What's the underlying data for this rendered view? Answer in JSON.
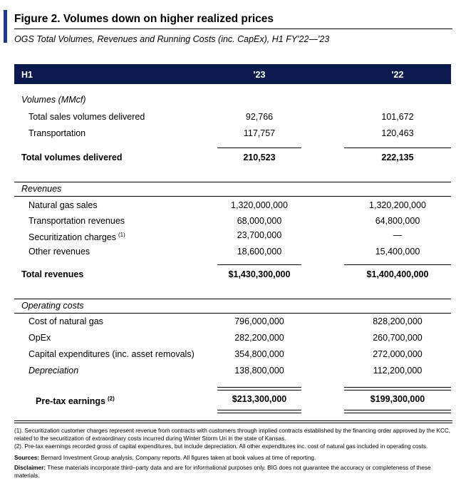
{
  "title": "Figure 2. Volumes down on higher realized prices",
  "subtitle": "OGS Total Volumes, Revenues and Running Costs (inc. CapEx),  H1 FY'22—'23",
  "header": [
    "H1",
    "'23",
    "'22"
  ],
  "sections": [
    {
      "heading": "Volumes (MMcf)",
      "rows": [
        {
          "label": "Total sales volumes delivered",
          "v23": "92,766",
          "v22": "101,672"
        },
        {
          "label": "Transportation",
          "v23": "117,757",
          "v22": "120,463"
        }
      ],
      "total": {
        "label": "Total volumes delivered",
        "v23": "210,523",
        "v22": "222,135"
      }
    },
    {
      "heading": "Revenues",
      "rows": [
        {
          "label": "Natural gas sales",
          "v23": "1,320,000,000",
          "v22": "1,320,200,000"
        },
        {
          "label": "Transportation revenues",
          "v23": "68,000,000",
          "v22": "64,800,000"
        },
        {
          "label": "Securitization charges",
          "note": "(1)",
          "v23": "23,700,000",
          "v22": "—"
        },
        {
          "label": "Other revenues",
          "v23": "18,600,000",
          "v22": "15,400,000"
        }
      ],
      "total": {
        "label": "Total revenues",
        "v23": "$1,430,300,000",
        "v22": "$1,400,400,000"
      }
    },
    {
      "heading": "Operating costs",
      "rows": [
        {
          "label": "Cost of natural gas",
          "v23": "796,000,000",
          "v22": "828,200,000"
        },
        {
          "label": "OpEx",
          "v23": "282,200,000",
          "v22": "260,700,000"
        },
        {
          "label": "Capital expenditures (inc. asset removals)",
          "v23": "354,800,000",
          "v22": "272,000,000"
        },
        {
          "label": "Depreciation",
          "v23": "138,800,000",
          "v22": "112,200,000"
        }
      ],
      "total": {
        "label": "Pre-tax earnings",
        "note": "(2)",
        "v23": "$213,300,000",
        "v22": "$199,300,000"
      }
    }
  ],
  "footnotes": [
    "(1). Securitization customer charges represent revenue from contracts with customers through implied contracts established by the financing order approved by the KCC, related to the securitization of extraordinary costs incurred during Winter Storm Uri in the state of Kansas.",
    "(2). Pre-tax eaernings recorded gross of capital expenditures, but include depreciation. All other expenditures inc. cost of natural gas included in operating costs."
  ],
  "sources": {
    "label": "Sources:",
    "text": "Bernard Investment Group analysis, Company reports. All figures taken at book values at time of reporting."
  },
  "disclaimer": {
    "label": "Disclaimer:",
    "text": "These materials incorporate third–party data and are for informational purposes only. BIG does not guarantee the accuracy or completeness of these materials."
  }
}
